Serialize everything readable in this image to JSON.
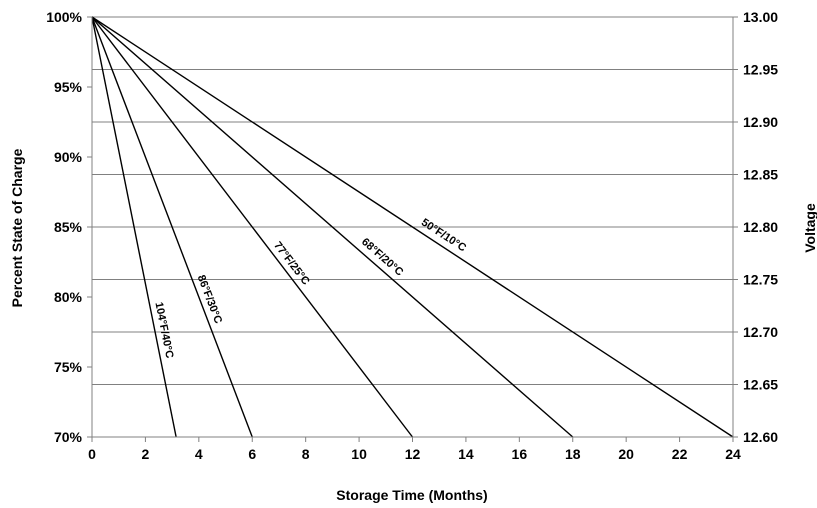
{
  "chart_data": {
    "type": "line",
    "xlabel": "Storage Time (Months)",
    "ylabel": "Percent State of Charge",
    "y2label": "Voltage",
    "xlim": [
      0,
      24
    ],
    "ylim": [
      70,
      100
    ],
    "y2lim": [
      12.6,
      13.0
    ],
    "x_ticks": [
      "0",
      "2",
      "4",
      "6",
      "8",
      "10",
      "12",
      "14",
      "16",
      "18",
      "20",
      "22",
      "24"
    ],
    "y_ticks": [
      "70%",
      "75%",
      "80%",
      "85%",
      "90%",
      "95%",
      "100%"
    ],
    "y2_ticks": [
      "12.60",
      "12.65",
      "12.70",
      "12.75",
      "12.80",
      "12.85",
      "12.90",
      "12.95",
      "13.00"
    ],
    "grid": "horizontal lines at right-axis voltage ticks",
    "series": [
      {
        "name": "104°F/40°C",
        "x": [
          0,
          3.15
        ],
        "y": [
          100,
          70
        ]
      },
      {
        "name": "86°F/30°C",
        "x": [
          0,
          6
        ],
        "y": [
          100,
          70
        ]
      },
      {
        "name": "77°F/25°C",
        "x": [
          0,
          12
        ],
        "y": [
          100,
          70
        ]
      },
      {
        "name": "68°F/20°C",
        "x": [
          0,
          18
        ],
        "y": [
          100,
          70
        ]
      },
      {
        "name": "50°F/10°C",
        "x": [
          0,
          24
        ],
        "y": [
          100,
          70
        ]
      }
    ],
    "colors": {
      "line": "#000000",
      "grid": "#808080"
    }
  }
}
